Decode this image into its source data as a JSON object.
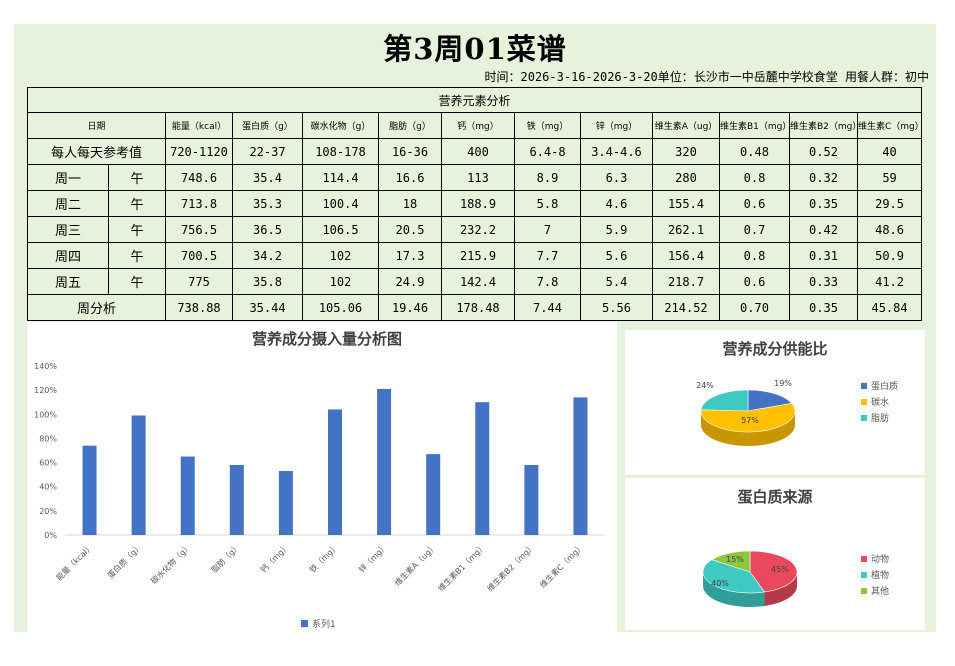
{
  "page": {
    "title": "第3周01菜谱",
    "meta": "时间：2026-3-16-2026-3-20单位：长沙市一中岳麓中学校食堂 用餐人群：初中"
  },
  "table": {
    "caption": "营养元素分析",
    "date_header": "日期",
    "columns": [
      "能量（kcal）",
      "蛋白质（g）",
      "碳水化物（g）",
      "脂肪（g）",
      "钙（mg）",
      "铁（mg）",
      "锌（mg）",
      "维生素A（ug）",
      "维生素B1（mg）",
      "维生素B2（mg）",
      "维生素C（mg）"
    ],
    "reference": {
      "label": "每人每天参考值",
      "values": [
        "720-1120",
        "22-37",
        "108-178",
        "16-36",
        "400",
        "6.4-8",
        "3.4-4.6",
        "320",
        "0.48",
        "0.52",
        "40"
      ]
    },
    "rows": [
      {
        "day": "周一",
        "meal": "午",
        "values": [
          "748.6",
          "35.4",
          "114.4",
          "16.6",
          "113",
          "8.9",
          "6.3",
          "280",
          "0.8",
          "0.32",
          "59"
        ]
      },
      {
        "day": "周二",
        "meal": "午",
        "values": [
          "713.8",
          "35.3",
          "100.4",
          "18",
          "188.9",
          "5.8",
          "4.6",
          "155.4",
          "0.6",
          "0.35",
          "29.5"
        ]
      },
      {
        "day": "周三",
        "meal": "午",
        "values": [
          "756.5",
          "36.5",
          "106.5",
          "20.5",
          "232.2",
          "7",
          "5.9",
          "262.1",
          "0.7",
          "0.42",
          "48.6"
        ]
      },
      {
        "day": "周四",
        "meal": "午",
        "values": [
          "700.5",
          "34.2",
          "102",
          "17.3",
          "215.9",
          "7.7",
          "5.6",
          "156.4",
          "0.8",
          "0.31",
          "50.9"
        ]
      },
      {
        "day": "周五",
        "meal": "午",
        "values": [
          "775",
          "35.8",
          "102",
          "24.9",
          "142.4",
          "7.8",
          "5.4",
          "218.7",
          "0.6",
          "0.33",
          "41.2"
        ]
      }
    ],
    "summary": {
      "label": "周分析",
      "values": [
        "738.88",
        "35.44",
        "105.06",
        "19.46",
        "178.48",
        "7.44",
        "5.56",
        "214.52",
        "0.70",
        "0.35",
        "45.84"
      ]
    }
  },
  "chart_data": [
    {
      "type": "bar",
      "title": "营养成分摄入量分析图",
      "categories": [
        "能量（kcal）",
        "蛋白质（g）",
        "碳水化物（g）",
        "脂肪（g）",
        "钙（mg）",
        "铁（mg）",
        "锌（mg）",
        "维生素A（ug）",
        "维生素B1（mg）",
        "维生素B2（mg）",
        "维生素C（mg）"
      ],
      "series": [
        {
          "name": "系列1",
          "values": [
            0.74,
            0.99,
            0.65,
            0.58,
            0.53,
            1.04,
            1.21,
            0.67,
            1.1,
            0.58,
            1.14
          ]
        }
      ],
      "ylim": [
        0,
        1.4
      ],
      "ytick_labels": [
        "0%",
        "20%",
        "40%",
        "60%",
        "80%",
        "100%",
        "120%",
        "140%"
      ],
      "grid": false,
      "legend": "bottom",
      "color": "#4472c4"
    },
    {
      "type": "pie",
      "title": "营养成分供能比",
      "labels": [
        "蛋白质",
        "碳水",
        "脂肪"
      ],
      "values": [
        19,
        57,
        24
      ],
      "value_labels": [
        "19%",
        "57%",
        "24%"
      ],
      "colors": [
        "#4472c4",
        "#ffc000",
        "#3ec9c3"
      ],
      "legend": "right"
    },
    {
      "type": "pie",
      "title": "蛋白质来源",
      "labels": [
        "动物",
        "植物",
        "其他"
      ],
      "values": [
        45,
        40,
        15
      ],
      "value_labels": [
        "45%",
        "40%",
        "15%"
      ],
      "colors": [
        "#e8495e",
        "#3ec9c3",
        "#8cc63f"
      ],
      "legend": "right"
    }
  ]
}
